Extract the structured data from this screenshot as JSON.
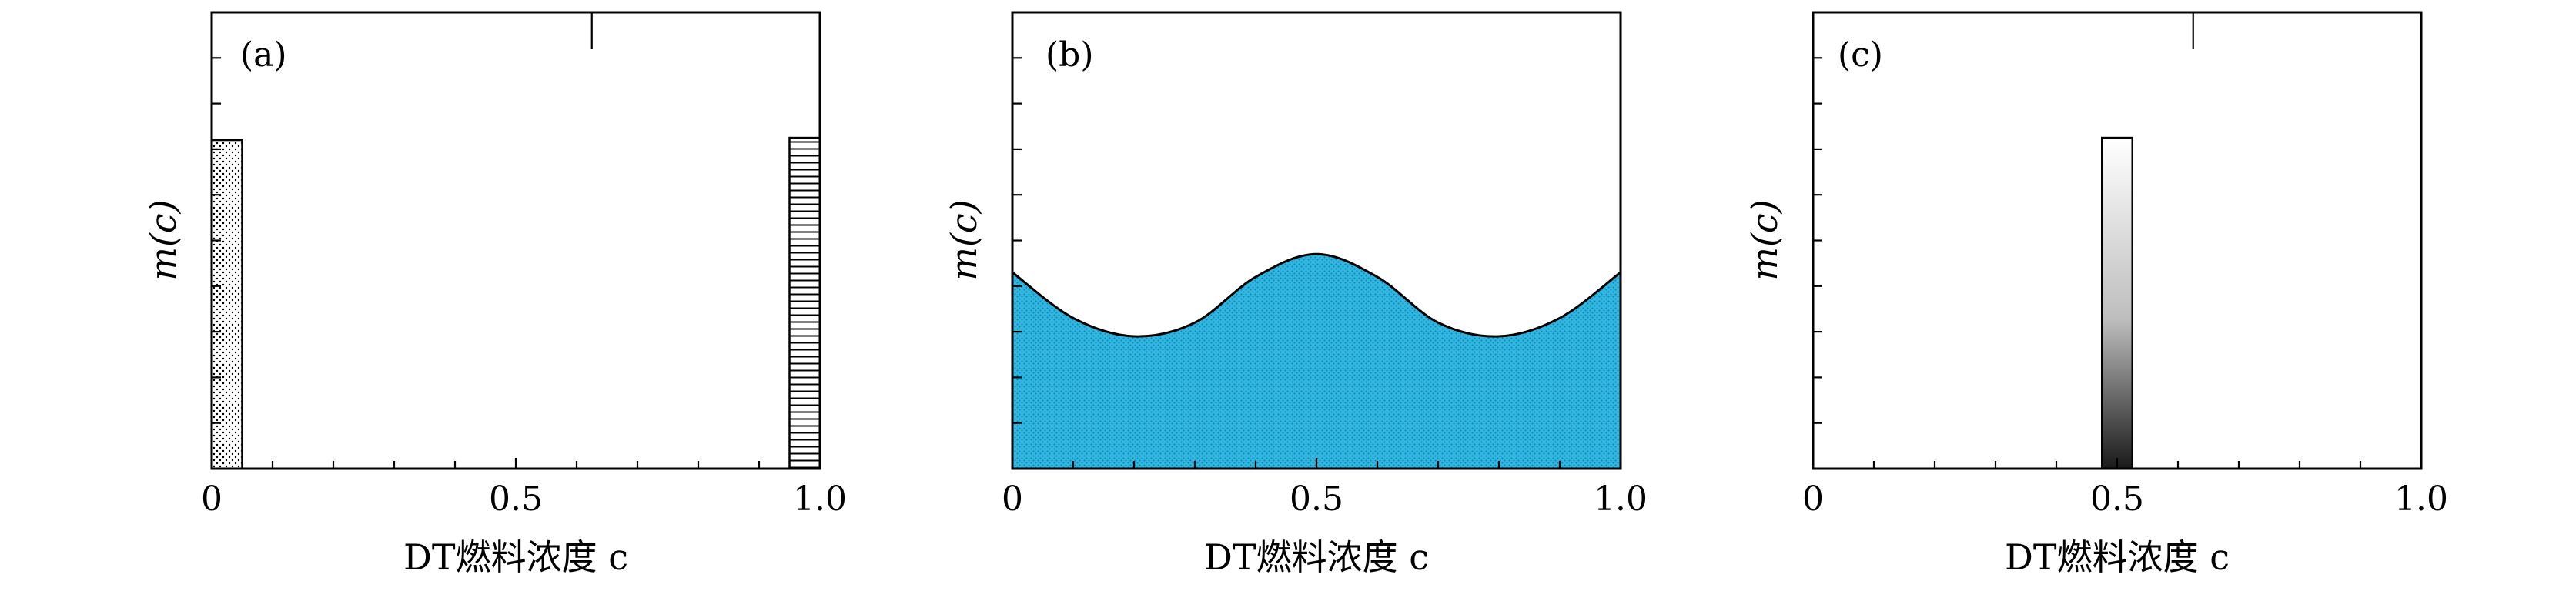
{
  "chart_data": [
    {
      "type": "area",
      "panel_label": "(a)",
      "xlabel": "DT燃料浓度 c",
      "ylabel": "m(c)",
      "xlim": [
        0,
        1.0
      ],
      "x_tick_labels": [
        "0",
        "0.5",
        "1.0"
      ],
      "bars": [
        {
          "x0": 0.0,
          "x1": 0.05,
          "height": 0.72,
          "pattern": "dots"
        },
        {
          "x0": 0.95,
          "x1": 1.0,
          "height": 0.725,
          "pattern": "horizontal-lines"
        }
      ],
      "grid": false
    },
    {
      "type": "area",
      "panel_label": "(b)",
      "xlabel": "DT燃料浓度 c",
      "ylabel": "m(c)",
      "xlim": [
        0,
        1.0
      ],
      "x_tick_labels": [
        "0",
        "0.5",
        "1.0"
      ],
      "x": [
        0.0,
        0.1,
        0.2,
        0.3,
        0.4,
        0.5,
        0.6,
        0.7,
        0.8,
        0.9,
        1.0
      ],
      "y": [
        0.43,
        0.33,
        0.29,
        0.32,
        0.42,
        0.47,
        0.42,
        0.32,
        0.29,
        0.33,
        0.43
      ],
      "fill_color": "#29b6e0",
      "grid": false
    },
    {
      "type": "bar",
      "panel_label": "(c)",
      "xlabel": "DT燃料浓度 c",
      "ylabel": "m(c)",
      "xlim": [
        0,
        1.0
      ],
      "x_tick_labels": [
        "0",
        "0.5",
        "1.0"
      ],
      "bars": [
        {
          "x0": 0.475,
          "x1": 0.525,
          "height": 0.725,
          "gradient": [
            "#ffffff",
            "#222222"
          ]
        }
      ],
      "grid": false
    }
  ]
}
